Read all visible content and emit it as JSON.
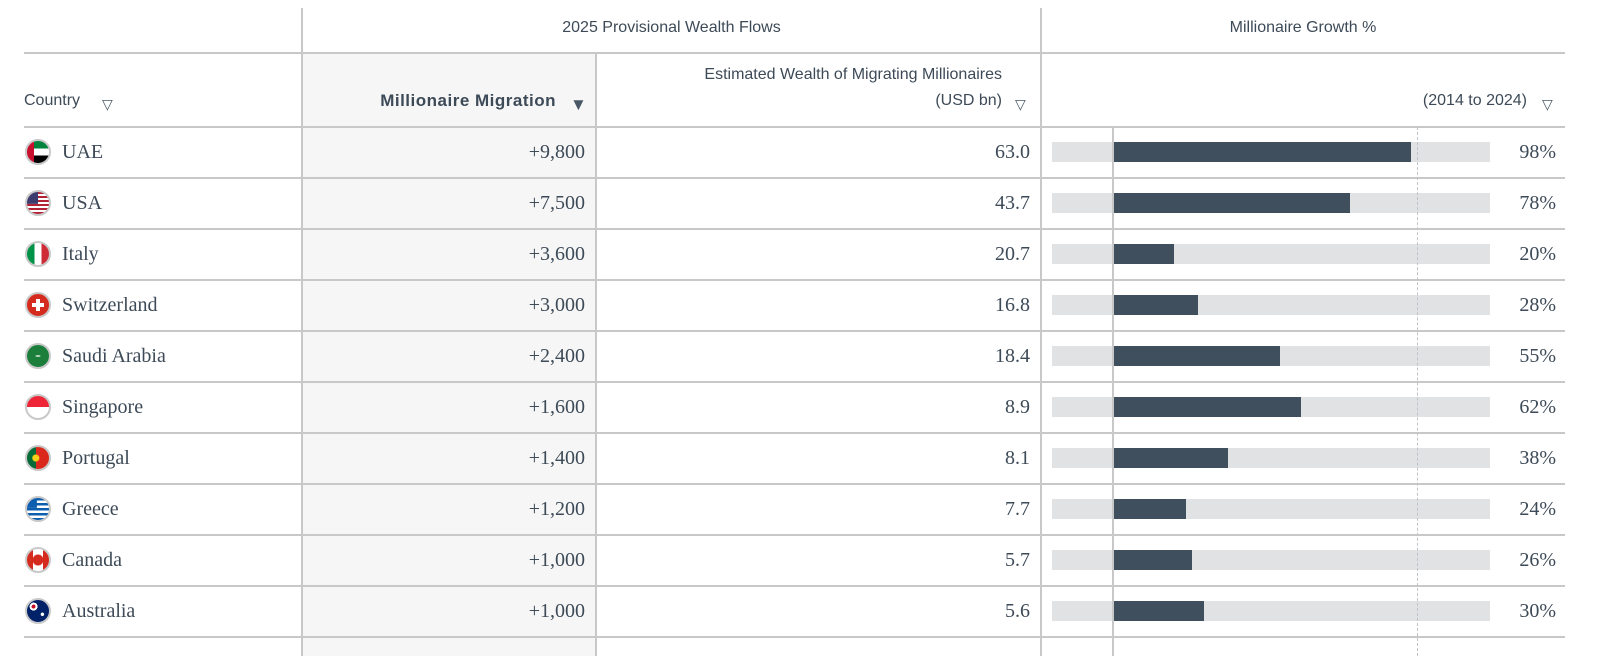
{
  "header": {
    "group_flows": "2025 Provisional Wealth Flows",
    "group_growth": "Millionaire Growth %",
    "country": "Country",
    "migration": "Millionaire Migration",
    "wealth_line1": "Estimated Wealth of Migrating Millionaires",
    "wealth_line2": "(USD bn)",
    "growth": "(2014 to 2024)"
  },
  "growth_scale": {
    "xlim": [
      -20,
      124
    ],
    "reference_line": 100
  },
  "rows": [
    {
      "country": "UAE",
      "migration": "+9,800",
      "wealth": "63.0",
      "growth": 98,
      "growth_label": "98%"
    },
    {
      "country": "USA",
      "migration": "+7,500",
      "wealth": "43.7",
      "growth": 78,
      "growth_label": "78%"
    },
    {
      "country": "Italy",
      "migration": "+3,600",
      "wealth": "20.7",
      "growth": 20,
      "growth_label": "20%"
    },
    {
      "country": "Switzerland",
      "migration": "+3,000",
      "wealth": "16.8",
      "growth": 28,
      "growth_label": "28%"
    },
    {
      "country": "Saudi Arabia",
      "migration": "+2,400",
      "wealth": "18.4",
      "growth": 55,
      "growth_label": "55%"
    },
    {
      "country": "Singapore",
      "migration": "+1,600",
      "wealth": "8.9",
      "growth": 62,
      "growth_label": "62%"
    },
    {
      "country": "Portugal",
      "migration": "+1,400",
      "wealth": "8.1",
      "growth": 38,
      "growth_label": "38%"
    },
    {
      "country": "Greece",
      "migration": "+1,200",
      "wealth": "7.7",
      "growth": 24,
      "growth_label": "24%"
    },
    {
      "country": "Canada",
      "migration": "+1,000",
      "wealth": "5.7",
      "growth": 26,
      "growth_label": "26%"
    },
    {
      "country": "Australia",
      "migration": "+1,000",
      "wealth": "5.6",
      "growth": 30,
      "growth_label": "30%"
    }
  ]
}
